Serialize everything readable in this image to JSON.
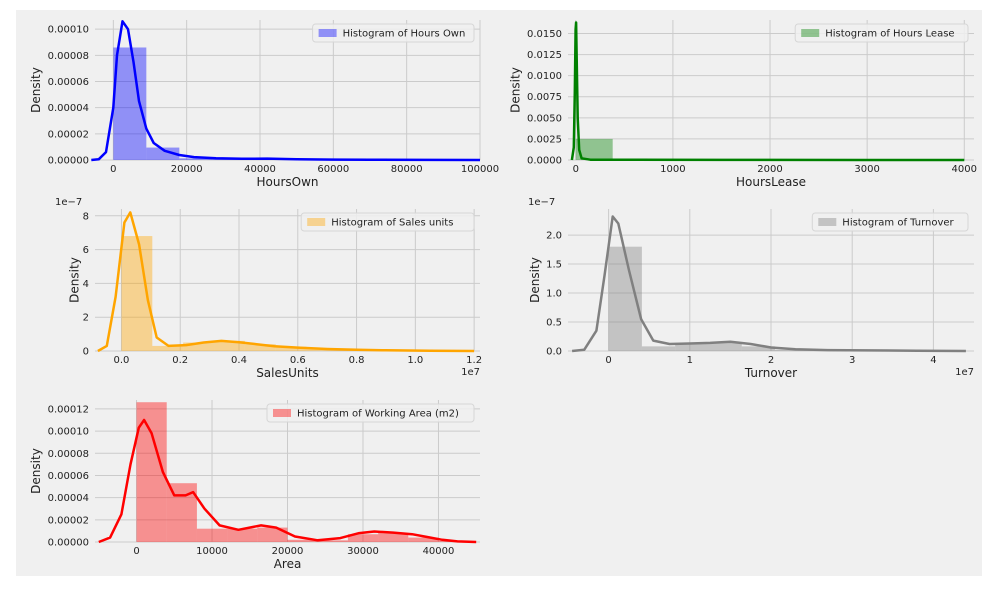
{
  "chart_data": [
    {
      "type": "histogram",
      "ylabel": "Density",
      "xlabel": "HoursOwn",
      "legend": "Histogram of Hours Own",
      "legend_position": "top-right",
      "color": "#0000ff",
      "xlim": [
        -5000,
        100000
      ],
      "ylim": [
        0,
        0.000107
      ],
      "xticks": [
        0,
        20000,
        40000,
        60000,
        80000,
        100000
      ],
      "xtick_labels": [
        "0",
        "20000",
        "40000",
        "60000",
        "80000",
        "100000"
      ],
      "yticks": [
        0,
        2e-05,
        4e-05,
        6e-05,
        8e-05,
        0.0001
      ],
      "ytick_labels": [
        "0.00000",
        "0.00002",
        "0.00004",
        "0.00006",
        "0.00008",
        "0.00010"
      ],
      "offset_text": "",
      "bins": [
        [
          0,
          9000,
          8.6e-05
        ],
        [
          9000,
          18000,
          9.5e-06
        ],
        [
          18000,
          27000,
          1.3e-06
        ],
        [
          27000,
          36000,
          6e-07
        ],
        [
          36000,
          45000,
          8e-07
        ],
        [
          45000,
          54000,
          4e-07
        ],
        [
          54000,
          63000,
          3e-07
        ],
        [
          63000,
          72000,
          1e-07
        ],
        [
          72000,
          81000,
          1e-07
        ],
        [
          81000,
          90000,
          5e-08
        ],
        [
          90000,
          99000,
          5e-08
        ]
      ],
      "kde": [
        [
          -6000,
          0
        ],
        [
          -4000,
          5e-07
        ],
        [
          -2000,
          6e-06
        ],
        [
          0,
          4e-05
        ],
        [
          1000,
          8e-05
        ],
        [
          2500,
          0.000106
        ],
        [
          4000,
          0.0001
        ],
        [
          5500,
          7.5e-05
        ],
        [
          7000,
          4.5e-05
        ],
        [
          9000,
          2.4e-05
        ],
        [
          11000,
          1.3e-05
        ],
        [
          14000,
          7e-06
        ],
        [
          18000,
          3.8e-06
        ],
        [
          22000,
          2.2e-06
        ],
        [
          28000,
          1.3e-06
        ],
        [
          35000,
          9e-07
        ],
        [
          42000,
          1.1e-06
        ],
        [
          50000,
          6e-07
        ],
        [
          60000,
          3e-07
        ],
        [
          70000,
          2e-07
        ],
        [
          85000,
          1e-07
        ],
        [
          100000,
          0
        ]
      ]
    },
    {
      "type": "histogram",
      "ylabel": "Density",
      "xlabel": "HoursLease",
      "legend": "Histogram of Hours Lease",
      "legend_position": "top-right",
      "color": "#008000",
      "xlim": [
        -80,
        4100
      ],
      "ylim": [
        0,
        0.0166
      ],
      "xticks": [
        0,
        1000,
        2000,
        3000,
        4000
      ],
      "xtick_labels": [
        "0",
        "1000",
        "2000",
        "3000",
        "4000"
      ],
      "yticks": [
        0,
        0.0025,
        0.005,
        0.0075,
        0.01,
        0.0125,
        0.015
      ],
      "ytick_labels": [
        "0.0000",
        "0.0025",
        "0.0050",
        "0.0075",
        "0.0100",
        "0.0125",
        "0.0150"
      ],
      "offset_text": "",
      "bins": [
        [
          0,
          380,
          0.0025
        ],
        [
          380,
          760,
          3e-05
        ],
        [
          760,
          1140,
          2e-05
        ],
        [
          1140,
          1520,
          1e-05
        ],
        [
          1520,
          1900,
          1e-05
        ],
        [
          1900,
          2280,
          1e-05
        ],
        [
          2280,
          2660,
          5e-06
        ],
        [
          2660,
          3040,
          5e-06
        ],
        [
          3040,
          3420,
          5e-06
        ],
        [
          3420,
          3800,
          3e-06
        ]
      ],
      "kde": [
        [
          -40,
          0
        ],
        [
          -20,
          0.0015
        ],
        [
          -10,
          0.008
        ],
        [
          -2,
          0.0155
        ],
        [
          3,
          0.0163
        ],
        [
          10,
          0.012
        ],
        [
          20,
          0.005
        ],
        [
          35,
          0.0012
        ],
        [
          60,
          0.0002
        ],
        [
          150,
          4e-05
        ],
        [
          500,
          2e-05
        ],
        [
          1500,
          1e-05
        ],
        [
          3000,
          5e-06
        ],
        [
          4000,
          0
        ]
      ]
    },
    {
      "type": "histogram",
      "ylabel": "Density",
      "xlabel": "SalesUnits",
      "legend": "Histogram of Sales units",
      "legend_position": "top-right",
      "color": "#ffa500",
      "xlim": [
        -900000,
        12200000
      ],
      "ylim": [
        0,
        8.4e-07
      ],
      "xticks": [
        0,
        2000000,
        4000000,
        6000000,
        8000000,
        10000000,
        12000000
      ],
      "xtick_labels": [
        "0.0",
        "0.2",
        "0.4",
        "0.6",
        "0.8",
        "1.0",
        "1.2"
      ],
      "yticks": [
        0,
        2e-07,
        4e-07,
        6e-07,
        8e-07
      ],
      "ytick_labels": [
        "0",
        "2",
        "4",
        "6",
        "8"
      ],
      "offset_text": "1e7",
      "y_offset_text": "1e−7",
      "bins": [
        [
          0,
          1050000,
          6.8e-07
        ],
        [
          1050000,
          2100000,
          3e-08
        ],
        [
          2100000,
          3150000,
          5e-08
        ],
        [
          3150000,
          4200000,
          6e-08
        ],
        [
          4200000,
          5250000,
          4e-08
        ],
        [
          5250000,
          6300000,
          2.5e-08
        ],
        [
          6300000,
          7350000,
          1.2e-08
        ],
        [
          7350000,
          8400000,
          5e-09
        ],
        [
          8400000,
          9450000,
          3e-09
        ],
        [
          9450000,
          10500000,
          2e-09
        ],
        [
          10500000,
          11550000,
          1e-09
        ]
      ],
      "kde": [
        [
          -800000,
          0
        ],
        [
          -500000,
          3e-08
        ],
        [
          -200000,
          3.2e-07
        ],
        [
          100000,
          7.6e-07
        ],
        [
          300000,
          8.2e-07
        ],
        [
          600000,
          6.3e-07
        ],
        [
          900000,
          3e-07
        ],
        [
          1200000,
          8e-08
        ],
        [
          1600000,
          3e-08
        ],
        [
          2200000,
          3.5e-08
        ],
        [
          2800000,
          5e-08
        ],
        [
          3400000,
          6e-08
        ],
        [
          4000000,
          5.2e-08
        ],
        [
          4600000,
          4e-08
        ],
        [
          5200000,
          2.8e-08
        ],
        [
          6000000,
          2e-08
        ],
        [
          7000000,
          1.2e-08
        ],
        [
          8000000,
          7e-09
        ],
        [
          9000000,
          4e-09
        ],
        [
          10500000,
          2e-09
        ],
        [
          12000000,
          0
        ]
      ]
    },
    {
      "type": "histogram",
      "ylabel": "Density",
      "xlabel": "Turnover",
      "legend": "Histogram of Turnover",
      "legend_position": "top-right",
      "color": "#808080",
      "xlim": [
        -5000000,
        45000000
      ],
      "ylim": [
        0,
        2.45e-07
      ],
      "xticks": [
        0,
        10000000,
        20000000,
        30000000,
        40000000
      ],
      "xtick_labels": [
        "0",
        "1",
        "2",
        "3",
        "4"
      ],
      "yticks": [
        0,
        5e-08,
        1e-07,
        1.5e-07,
        2e-07
      ],
      "ytick_labels": [
        "0.0",
        "0.5",
        "1.0",
        "1.5",
        "2.0"
      ],
      "offset_text": "1e7",
      "y_offset_text": "1e−7",
      "bins": [
        [
          0,
          4100000,
          1.8e-07
        ],
        [
          4100000,
          8200000,
          8e-09
        ],
        [
          8200000,
          12300000,
          1.3e-08
        ],
        [
          12300000,
          16400000,
          1.4e-08
        ],
        [
          16400000,
          20500000,
          8e-09
        ],
        [
          20500000,
          24600000,
          2e-09
        ],
        [
          24600000,
          28700000,
          1e-09
        ],
        [
          28700000,
          32800000,
          5e-10
        ],
        [
          32800000,
          36900000,
          3e-10
        ],
        [
          36900000,
          41000000,
          2e-10
        ]
      ],
      "kde": [
        [
          -4500000,
          0
        ],
        [
          -3000000,
          2e-09
        ],
        [
          -1500000,
          3.5e-08
        ],
        [
          -500000,
          1.3e-07
        ],
        [
          500000,
          2.32e-07
        ],
        [
          1200000,
          2.2e-07
        ],
        [
          2500000,
          1.4e-07
        ],
        [
          4000000,
          5.5e-08
        ],
        [
          5500000,
          1.8e-08
        ],
        [
          7500000,
          1.2e-08
        ],
        [
          10000000,
          1.3e-08
        ],
        [
          12500000,
          1.4e-08
        ],
        [
          15000000,
          1.6e-08
        ],
        [
          17500000,
          1.2e-08
        ],
        [
          20000000,
          6e-09
        ],
        [
          23000000,
          3e-09
        ],
        [
          27000000,
          1.5e-09
        ],
        [
          32000000,
          1e-09
        ],
        [
          38000000,
          5e-10
        ],
        [
          44000000,
          0
        ]
      ]
    },
    {
      "type": "histogram",
      "ylabel": "Density",
      "xlabel": "Area",
      "legend": "Histogram of Working Area (m2)",
      "legend_position": "top-right",
      "color": "#ff0000",
      "xlim": [
        -5500,
        45500
      ],
      "ylim": [
        0,
        0.000128
      ],
      "xticks": [
        0,
        10000,
        20000,
        30000,
        40000
      ],
      "xtick_labels": [
        "0",
        "10000",
        "20000",
        "30000",
        "40000"
      ],
      "yticks": [
        0,
        2e-05,
        4e-05,
        6e-05,
        8e-05,
        0.0001,
        0.00012
      ],
      "ytick_labels": [
        "0.00000",
        "0.00002",
        "0.00004",
        "0.00006",
        "0.00008",
        "0.00010",
        "0.00012"
      ],
      "offset_text": "",
      "bins": [
        [
          0,
          4000,
          0.000126
        ],
        [
          4000,
          8000,
          5.3e-05
        ],
        [
          8000,
          12000,
          1.2e-05
        ],
        [
          12000,
          16000,
          1.2e-05
        ],
        [
          16000,
          20000,
          1.3e-05
        ],
        [
          20000,
          24000,
          2e-06
        ],
        [
          24000,
          28000,
          1.5e-06
        ],
        [
          28000,
          32000,
          7e-06
        ],
        [
          32000,
          36000,
          8e-06
        ],
        [
          36000,
          40000,
          4e-06
        ],
        [
          40000,
          44000,
          1e-06
        ]
      ],
      "kde": [
        [
          -5000,
          0
        ],
        [
          -3500,
          4e-06
        ],
        [
          -2000,
          2.5e-05
        ],
        [
          -800,
          7e-05
        ],
        [
          300,
          0.000103
        ],
        [
          1000,
          0.00011
        ],
        [
          2000,
          9.8e-05
        ],
        [
          3500,
          6.3e-05
        ],
        [
          5000,
          4.2e-05
        ],
        [
          6500,
          4.2e-05
        ],
        [
          7500,
          4.5e-05
        ],
        [
          9000,
          3e-05
        ],
        [
          11000,
          1.5e-05
        ],
        [
          13500,
          1.1e-05
        ],
        [
          16500,
          1.5e-05
        ],
        [
          18500,
          1.3e-05
        ],
        [
          21000,
          5e-06
        ],
        [
          24000,
          1.5e-06
        ],
        [
          27000,
          3.5e-06
        ],
        [
          29500,
          8e-06
        ],
        [
          31500,
          9.5e-06
        ],
        [
          34000,
          8.5e-06
        ],
        [
          36500,
          7e-06
        ],
        [
          38500,
          4.5e-06
        ],
        [
          40500,
          2e-06
        ],
        [
          42500,
          5e-07
        ],
        [
          45000,
          0
        ]
      ]
    }
  ]
}
